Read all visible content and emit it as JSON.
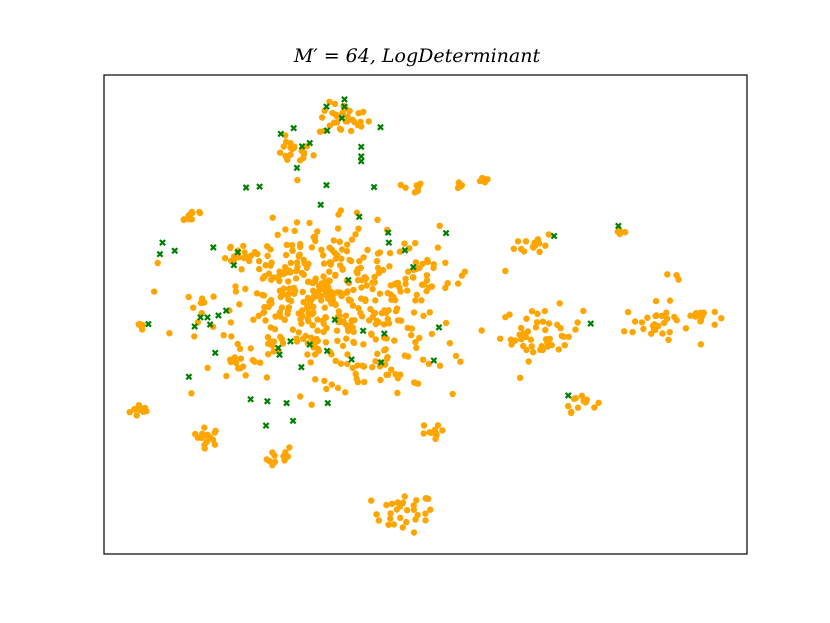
{
  "chart_data": {
    "type": "scatter",
    "title": "M′ = 64, LogDeterminant",
    "xlabel": "",
    "ylabel": "",
    "xlim": [
      0,
      100
    ],
    "ylim": [
      0,
      100
    ],
    "grid": false,
    "ticks": false,
    "colors": {
      "all_points": "#FFA500",
      "selected": "#008000",
      "frame": "#000000"
    },
    "series": [
      {
        "marker": "circle",
        "clusters": [
          {
            "x": 5.8,
            "y": 30.0,
            "spread": 0.9,
            "n": 12
          },
          {
            "x": 16.0,
            "y": 24.5,
            "spread": 1.1,
            "n": 15
          },
          {
            "x": 27.5,
            "y": 19.8,
            "spread": 1.1,
            "n": 12
          },
          {
            "x": 46.5,
            "y": 8.6,
            "spread": 2.4,
            "n": 30
          },
          {
            "x": 29.2,
            "y": 84.0,
            "spread": 1.6,
            "n": 20
          },
          {
            "x": 37.4,
            "y": 90.7,
            "spread": 2.0,
            "n": 32
          },
          {
            "x": 48.0,
            "y": 76.3,
            "spread": 0.8,
            "n": 8
          },
          {
            "x": 55.0,
            "y": 77.3,
            "spread": 0.6,
            "n": 6
          },
          {
            "x": 59.0,
            "y": 78.0,
            "spread": 0.5,
            "n": 6
          },
          {
            "x": 13.5,
            "y": 71.0,
            "spread": 1.2,
            "n": 10
          },
          {
            "x": 6.0,
            "y": 47.5,
            "spread": 0.6,
            "n": 5
          },
          {
            "x": 67.0,
            "y": 64.8,
            "spread": 1.5,
            "n": 14
          },
          {
            "x": 80.2,
            "y": 67.2,
            "spread": 0.5,
            "n": 5
          },
          {
            "x": 89.0,
            "y": 58.0,
            "spread": 0.4,
            "n": 3
          },
          {
            "x": 74.0,
            "y": 32.0,
            "spread": 1.3,
            "n": 12
          },
          {
            "x": 86.0,
            "y": 48.0,
            "spread": 2.5,
            "n": 30
          },
          {
            "x": 93.0,
            "y": 49.5,
            "spread": 1.2,
            "n": 12
          },
          {
            "x": 68.0,
            "y": 46.0,
            "spread": 3.2,
            "n": 48
          },
          {
            "x": 34.0,
            "y": 53.0,
            "spread": 9.0,
            "n": 420
          },
          {
            "x": 44.0,
            "y": 41.0,
            "spread": 4.5,
            "n": 40
          },
          {
            "x": 50.0,
            "y": 58.0,
            "spread": 3.0,
            "n": 20
          },
          {
            "x": 50.5,
            "y": 25.5,
            "spread": 0.9,
            "n": 10
          },
          {
            "x": 21.5,
            "y": 62.0,
            "spread": 1.5,
            "n": 10
          },
          {
            "x": 20.0,
            "y": 40.0,
            "spread": 0.8,
            "n": 6
          }
        ]
      },
      {
        "marker": "x",
        "points": [
          [
            34.6,
            93.4
          ],
          [
            37.4,
            94.9
          ],
          [
            37.4,
            93.4
          ],
          [
            43.0,
            89.1
          ],
          [
            37.0,
            91.0
          ],
          [
            29.5,
            88.9
          ],
          [
            27.5,
            87.7
          ],
          [
            30.8,
            85.1
          ],
          [
            32.0,
            85.8
          ],
          [
            34.7,
            88.4
          ],
          [
            30.0,
            80.6
          ],
          [
            40.0,
            83.0
          ],
          [
            40.0,
            85.0
          ],
          [
            40.0,
            82.0
          ],
          [
            42.0,
            76.6
          ],
          [
            34.6,
            77.0
          ],
          [
            22.1,
            76.5
          ],
          [
            24.2,
            76.7
          ],
          [
            33.7,
            72.9
          ],
          [
            39.7,
            70.4
          ],
          [
            44.2,
            67.1
          ],
          [
            53.2,
            67.0
          ],
          [
            46.8,
            63.4
          ],
          [
            44.3,
            65.0
          ],
          [
            48.1,
            59.9
          ],
          [
            38.0,
            57.2
          ],
          [
            9.1,
            65.0
          ],
          [
            17.0,
            64.0
          ],
          [
            8.7,
            62.6
          ],
          [
            20.8,
            63.0
          ],
          [
            11.0,
            63.3
          ],
          [
            20.2,
            60.3
          ],
          [
            6.9,
            48.0
          ],
          [
            15.0,
            49.4
          ],
          [
            16.1,
            49.4
          ],
          [
            14.1,
            47.5
          ],
          [
            16.5,
            47.9
          ],
          [
            17.8,
            49.8
          ],
          [
            19.0,
            50.8
          ],
          [
            17.3,
            42.0
          ],
          [
            29.0,
            44.4
          ],
          [
            34.7,
            42.4
          ],
          [
            32.0,
            43.7
          ],
          [
            35.9,
            48.9
          ],
          [
            43.6,
            46.0
          ],
          [
            27.1,
            43.0
          ],
          [
            27.3,
            41.6
          ],
          [
            30.7,
            39.0
          ],
          [
            38.5,
            40.6
          ],
          [
            40.3,
            46.6
          ],
          [
            13.2,
            37.0
          ],
          [
            34.8,
            31.5
          ],
          [
            28.4,
            31.5
          ],
          [
            25.4,
            31.9
          ],
          [
            22.8,
            32.3
          ],
          [
            29.4,
            27.8
          ],
          [
            25.2,
            26.8
          ],
          [
            43.1,
            40.0
          ],
          [
            51.3,
            40.4
          ],
          [
            52.1,
            47.3
          ],
          [
            70.0,
            66.4
          ],
          [
            80.0,
            68.5
          ],
          [
            75.7,
            48.1
          ],
          [
            72.2,
            33.1
          ]
        ]
      }
    ]
  }
}
